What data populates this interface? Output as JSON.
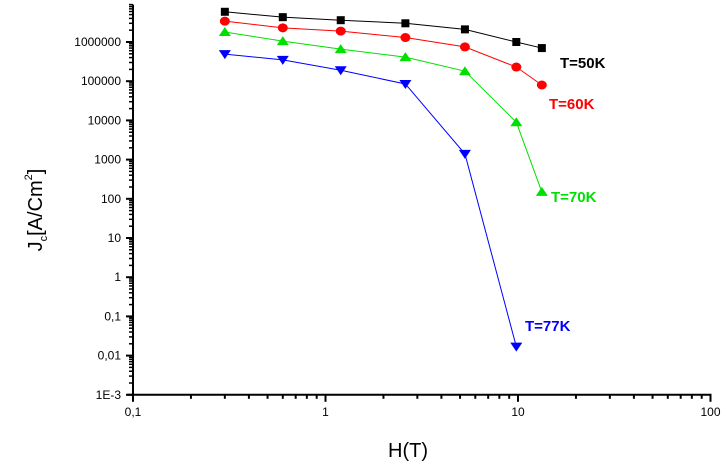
{
  "chart_data": {
    "type": "line",
    "title": "",
    "xlabel": "H(T)",
    "ylabel_main": "J",
    "ylabel_sub": "c",
    "ylabel_rest": "[A/Cm",
    "ylabel_sup": "2",
    "ylabel_end": "]",
    "xscale": "log",
    "yscale": "log",
    "xlim": [
      0.1,
      100
    ],
    "ylim": [
      0.001,
      9000000
    ],
    "x_ticks": [
      0.1,
      1,
      10,
      100
    ],
    "x_tick_labels": [
      "0,1",
      "1",
      "10",
      "100"
    ],
    "y_ticks": [
      0.001,
      0.01,
      0.1,
      1,
      10,
      100,
      1000,
      10000,
      100000,
      1000000
    ],
    "y_tick_labels": [
      "1E-3",
      "0,01",
      "0,1",
      "1",
      "10",
      "100",
      "1000",
      "10000",
      "100000",
      "1000000"
    ],
    "grid": false,
    "legend": "inline labels at series ends",
    "series": [
      {
        "name": "T=50K",
        "color": "#000000",
        "marker": "square",
        "x": [
          0.3,
          0.6,
          1.2,
          2.6,
          5.3,
          9.8,
          13.3
        ],
        "y": [
          5900000,
          4300000,
          3600000,
          3000000,
          2100000,
          1000000,
          700000
        ]
      },
      {
        "name": "T=60K",
        "color": "#ff0000",
        "marker": "circle",
        "x": [
          0.3,
          0.6,
          1.2,
          2.6,
          5.3,
          9.8,
          13.3
        ],
        "y": [
          3400000,
          2300000,
          1900000,
          1300000,
          750000,
          230000,
          80000
        ]
      },
      {
        "name": "T=70K",
        "color": "#00e000",
        "marker": "triangle-up",
        "x": [
          0.3,
          0.6,
          1.2,
          2.6,
          5.3,
          9.8,
          13.3
        ],
        "y": [
          1800000,
          1050000,
          660000,
          410000,
          180000,
          9000,
          150
        ]
      },
      {
        "name": "T=77K",
        "color": "#0000ff",
        "marker": "triangle-down",
        "x": [
          0.3,
          0.6,
          1.2,
          2.6,
          5.3,
          9.8
        ],
        "y": [
          490000,
          350000,
          190000,
          85000,
          1400,
          0.017
        ]
      }
    ]
  }
}
